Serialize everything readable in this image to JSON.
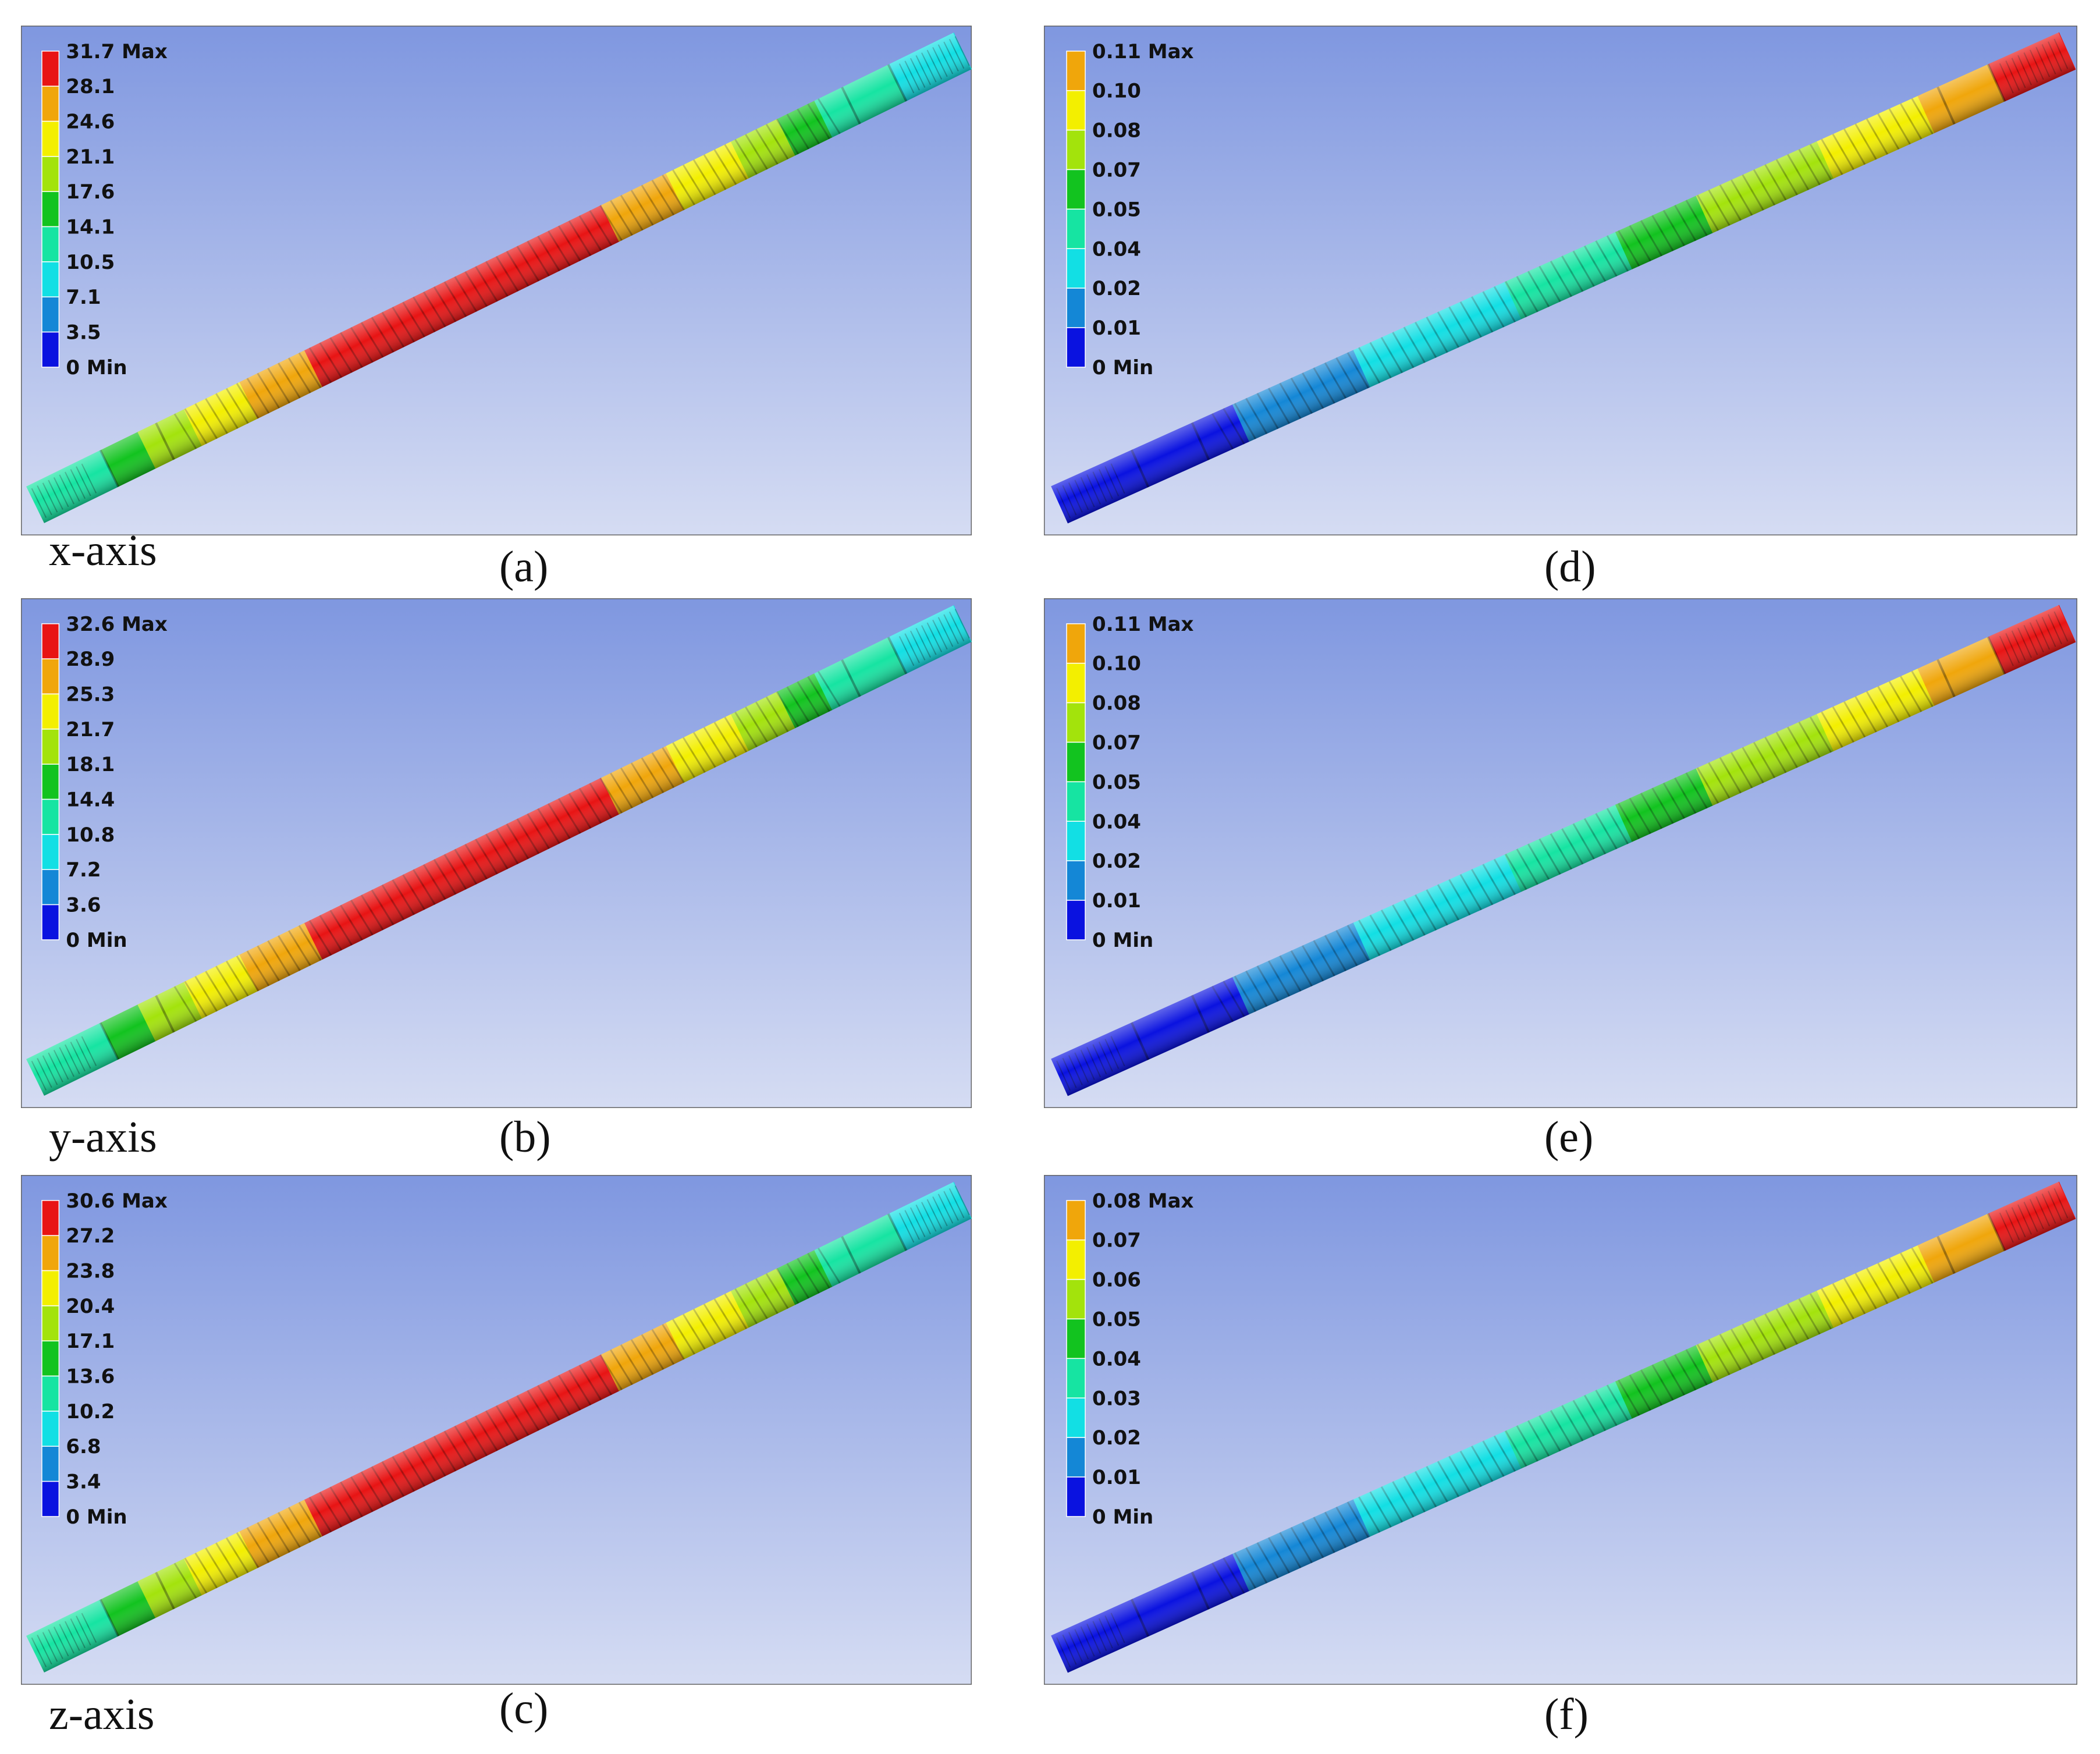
{
  "colors": {
    "bands": [
      "#0a12e0",
      "#1487d6",
      "#12dfe4",
      "#16e4a2",
      "#12c31f",
      "#a3e30c",
      "#f3ef00",
      "#f0a60b",
      "#e81414"
    ],
    "background_top": "#7f97e0",
    "background_bottom": "#d5dcf3",
    "frame": "#666666"
  },
  "panels": [
    {
      "id": "a",
      "caption": "(a)",
      "axis_label": "x-axis",
      "variant": "stress",
      "legend": [
        "31.7 Max",
        "28.1",
        "24.6",
        "21.1",
        "17.6",
        "14.1",
        "10.5",
        "7.1",
        "3.5",
        "0 Min"
      ]
    },
    {
      "id": "b",
      "caption": "(b)",
      "axis_label": "y-axis",
      "variant": "stress",
      "legend": [
        "32.6 Max",
        "28.9",
        "25.3",
        "21.7",
        "18.1",
        "14.4",
        "10.8",
        "7.2",
        "3.6",
        "0 Min"
      ]
    },
    {
      "id": "c",
      "caption": "(c)",
      "axis_label": "z-axis",
      "variant": "stress",
      "legend": [
        "30.6 Max",
        "27.2",
        "23.8",
        "20.4",
        "17.1",
        "13.6",
        "10.2",
        "6.8",
        "3.4",
        "0 Min"
      ]
    },
    {
      "id": "d",
      "caption": "(d)",
      "axis_label": "",
      "variant": "deformation",
      "legend": [
        "0.11 Max",
        "0.10",
        "0.08",
        "0.07",
        "0.05",
        "0.04",
        "0.02",
        "0.01",
        "0 Min"
      ]
    },
    {
      "id": "e",
      "caption": "(e)",
      "axis_label": "",
      "variant": "deformation",
      "legend": [
        "0.11 Max",
        "0.10",
        "0.08",
        "0.07",
        "0.05",
        "0.04",
        "0.02",
        "0.01",
        "0 Min"
      ]
    },
    {
      "id": "f",
      "caption": "(f)",
      "axis_label": "",
      "variant": "deformation",
      "legend": [
        "0.08 Max",
        "0.07",
        "0.06",
        "0.05",
        "0.04",
        "0.03",
        "0.02",
        "0.01",
        "0 Min"
      ]
    }
  ]
}
